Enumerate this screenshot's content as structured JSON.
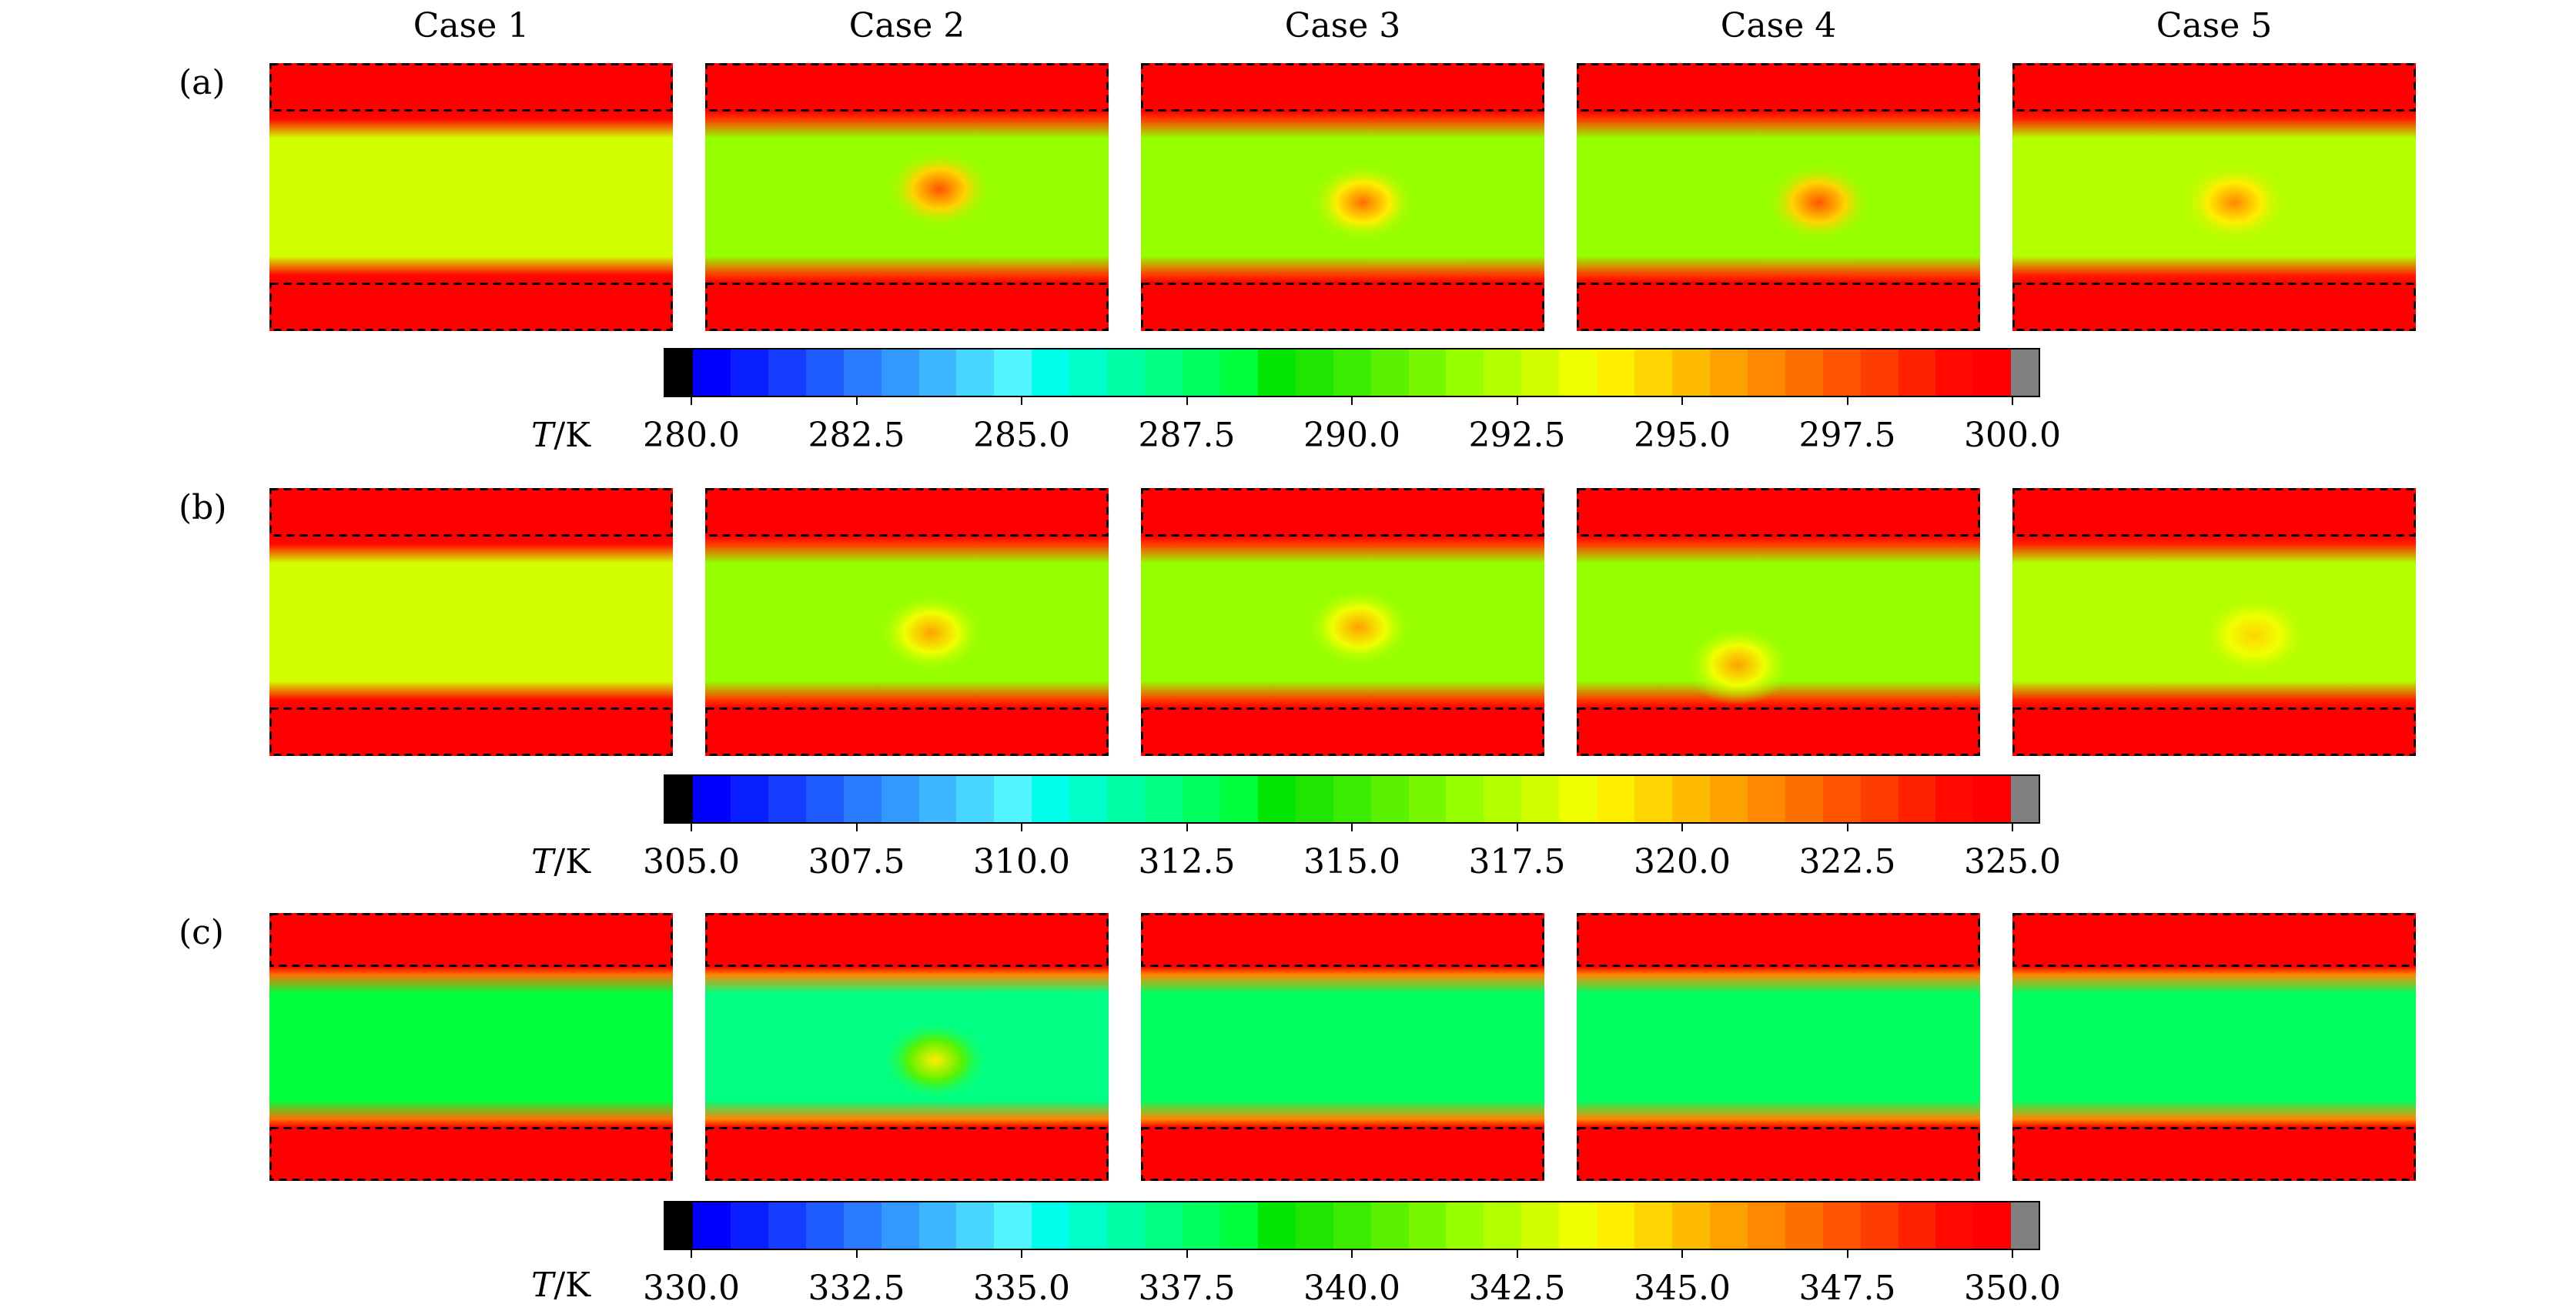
{
  "figure": {
    "case_titles": [
      "Case 1",
      "Case 2",
      "Case 3",
      "Case 4",
      "Case 5"
    ],
    "row_labels": [
      "(a)",
      "(b)",
      "(c)"
    ]
  },
  "colors": {
    "colormap": [
      "#000000",
      "#0000ff",
      "#0a1fff",
      "#143dff",
      "#1e5cff",
      "#287aff",
      "#3399ff",
      "#3db7ff",
      "#47d6ff",
      "#52f4ff",
      "#00ffea",
      "#00ffc8",
      "#00ffa5",
      "#00ff82",
      "#00ff5f",
      "#00ff3c",
      "#00e600",
      "#1ee600",
      "#3cec00",
      "#5af200",
      "#78f800",
      "#96ff00",
      "#b4ff00",
      "#d2ff00",
      "#f0ff00",
      "#ffee00",
      "#ffd500",
      "#ffbb00",
      "#ffa200",
      "#ff8800",
      "#ff6f00",
      "#ff5500",
      "#ff3c00",
      "#ff2200",
      "#ff0900",
      "#ff0000",
      "#808080"
    ],
    "hot_band": "#ff0000",
    "warm_band": "#f0ff00",
    "bulk_green": "#7cf000",
    "bulk_cyan": "#00ffd0",
    "hotspot": "#ff6f00"
  },
  "chart_data": [
    {
      "type": "heatmap",
      "panel": "(a)",
      "colorbar_label": "T/K",
      "unit_symbol": "T",
      "unit_text": "/K",
      "range": [
        280.0,
        300.0
      ],
      "ticks": [
        "280.0",
        "282.5",
        "285.0",
        "287.5",
        "290.0",
        "292.5",
        "295.0",
        "297.5",
        "300.0"
      ],
      "cases": [
        {
          "name": "Case 1",
          "wall_T": 300,
          "core_T": 293.0,
          "hotspot_T": null
        },
        {
          "name": "Case 2",
          "wall_T": 300,
          "core_T": 291.5,
          "hotspot_T": 297.5
        },
        {
          "name": "Case 3",
          "wall_T": 300,
          "core_T": 291.5,
          "hotspot_T": 297.0
        },
        {
          "name": "Case 4",
          "wall_T": 300,
          "core_T": 291.5,
          "hotspot_T": 297.5
        },
        {
          "name": "Case 5",
          "wall_T": 300,
          "core_T": 292.0,
          "hotspot_T": 296.5
        }
      ]
    },
    {
      "type": "heatmap",
      "panel": "(b)",
      "colorbar_label": "T/K",
      "unit_symbol": "T",
      "unit_text": "/K",
      "range": [
        305.0,
        325.0
      ],
      "ticks": [
        "305.0",
        "307.5",
        "310.0",
        "312.5",
        "315.0",
        "317.5",
        "320.0",
        "322.5",
        "325.0"
      ],
      "cases": [
        {
          "name": "Case 1",
          "wall_T": 325,
          "core_T": 318.0,
          "hotspot_T": null
        },
        {
          "name": "Case 2",
          "wall_T": 325,
          "core_T": 316.5,
          "hotspot_T": 320.5
        },
        {
          "name": "Case 3",
          "wall_T": 325,
          "core_T": 316.5,
          "hotspot_T": 320.5
        },
        {
          "name": "Case 4",
          "wall_T": 325,
          "core_T": 316.5,
          "hotspot_T": 320.5
        },
        {
          "name": "Case 5",
          "wall_T": 325,
          "core_T": 317.0,
          "hotspot_T": 319.5
        }
      ]
    },
    {
      "type": "heatmap",
      "panel": "(c)",
      "colorbar_label": "T/K",
      "unit_symbol": "T",
      "unit_text": "/K",
      "range": [
        330.0,
        350.0
      ],
      "ticks": [
        "330.0",
        "332.5",
        "335.0",
        "337.5",
        "340.0",
        "342.5",
        "345.0",
        "347.5",
        "350.0"
      ],
      "cases": [
        {
          "name": "Case 1",
          "wall_T": 350,
          "core_T": 338.5,
          "hotspot_T": null
        },
        {
          "name": "Case 2",
          "wall_T": 350,
          "core_T": 337.0,
          "hotspot_T": 344.0
        },
        {
          "name": "Case 3",
          "wall_T": 350,
          "core_T": 337.5,
          "hotspot_T": null
        },
        {
          "name": "Case 4",
          "wall_T": 350,
          "core_T": 337.5,
          "hotspot_T": null
        },
        {
          "name": "Case 5",
          "wall_T": 350,
          "core_T": 337.5,
          "hotspot_T": null
        }
      ]
    }
  ]
}
